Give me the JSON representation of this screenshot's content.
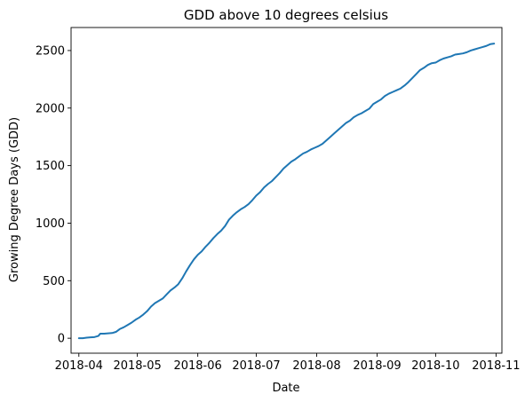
{
  "chart_data": {
    "type": "line",
    "title": "GDD above 10 degrees celsius",
    "xlabel": "Date",
    "ylabel": "Growing Degree Days (GDD)",
    "xlim": [
      "2018-03-28",
      "2018-11-04"
    ],
    "ylim": [
      -130,
      2700
    ],
    "x_ticks": [
      "2018-04",
      "2018-05",
      "2018-06",
      "2018-07",
      "2018-08",
      "2018-09",
      "2018-10",
      "2018-11"
    ],
    "y_ticks": [
      0,
      500,
      1000,
      1500,
      2000,
      2500
    ],
    "grid": false,
    "series": [
      {
        "color": "#1f77b4",
        "points": [
          [
            "2018-04-01",
            0
          ],
          [
            "2018-04-03",
            0
          ],
          [
            "2018-04-05",
            5
          ],
          [
            "2018-04-07",
            8
          ],
          [
            "2018-04-09",
            10
          ],
          [
            "2018-04-11",
            20
          ],
          [
            "2018-04-12",
            40
          ],
          [
            "2018-04-14",
            40
          ],
          [
            "2018-04-16",
            43
          ],
          [
            "2018-04-18",
            45
          ],
          [
            "2018-04-20",
            55
          ],
          [
            "2018-04-22",
            80
          ],
          [
            "2018-04-24",
            95
          ],
          [
            "2018-04-26",
            115
          ],
          [
            "2018-04-28",
            135
          ],
          [
            "2018-04-30",
            160
          ],
          [
            "2018-05-02",
            180
          ],
          [
            "2018-05-04",
            205
          ],
          [
            "2018-05-06",
            235
          ],
          [
            "2018-05-08",
            275
          ],
          [
            "2018-05-10",
            305
          ],
          [
            "2018-05-12",
            325
          ],
          [
            "2018-05-14",
            345
          ],
          [
            "2018-05-16",
            380
          ],
          [
            "2018-05-18",
            415
          ],
          [
            "2018-05-20",
            440
          ],
          [
            "2018-05-22",
            470
          ],
          [
            "2018-05-24",
            520
          ],
          [
            "2018-05-26",
            580
          ],
          [
            "2018-05-28",
            635
          ],
          [
            "2018-05-30",
            685
          ],
          [
            "2018-06-01",
            725
          ],
          [
            "2018-06-03",
            755
          ],
          [
            "2018-06-05",
            795
          ],
          [
            "2018-06-07",
            830
          ],
          [
            "2018-06-09",
            870
          ],
          [
            "2018-06-11",
            905
          ],
          [
            "2018-06-13",
            935
          ],
          [
            "2018-06-15",
            975
          ],
          [
            "2018-06-17",
            1030
          ],
          [
            "2018-06-19",
            1065
          ],
          [
            "2018-06-21",
            1095
          ],
          [
            "2018-06-23",
            1120
          ],
          [
            "2018-06-25",
            1140
          ],
          [
            "2018-06-27",
            1165
          ],
          [
            "2018-06-29",
            1200
          ],
          [
            "2018-07-01",
            1240
          ],
          [
            "2018-07-03",
            1270
          ],
          [
            "2018-07-05",
            1310
          ],
          [
            "2018-07-07",
            1340
          ],
          [
            "2018-07-09",
            1365
          ],
          [
            "2018-07-11",
            1400
          ],
          [
            "2018-07-13",
            1435
          ],
          [
            "2018-07-15",
            1475
          ],
          [
            "2018-07-17",
            1505
          ],
          [
            "2018-07-19",
            1535
          ],
          [
            "2018-07-21",
            1555
          ],
          [
            "2018-07-23",
            1580
          ],
          [
            "2018-07-25",
            1605
          ],
          [
            "2018-07-27",
            1620
          ],
          [
            "2018-07-29",
            1640
          ],
          [
            "2018-07-31",
            1655
          ],
          [
            "2018-08-02",
            1670
          ],
          [
            "2018-08-04",
            1690
          ],
          [
            "2018-08-06",
            1720
          ],
          [
            "2018-08-08",
            1750
          ],
          [
            "2018-08-10",
            1780
          ],
          [
            "2018-08-12",
            1810
          ],
          [
            "2018-08-14",
            1840
          ],
          [
            "2018-08-16",
            1870
          ],
          [
            "2018-08-18",
            1890
          ],
          [
            "2018-08-20",
            1920
          ],
          [
            "2018-08-22",
            1940
          ],
          [
            "2018-08-24",
            1955
          ],
          [
            "2018-08-26",
            1975
          ],
          [
            "2018-08-28",
            1995
          ],
          [
            "2018-08-30",
            2035
          ],
          [
            "2018-09-01",
            2055
          ],
          [
            "2018-09-03",
            2075
          ],
          [
            "2018-09-05",
            2105
          ],
          [
            "2018-09-07",
            2125
          ],
          [
            "2018-09-09",
            2140
          ],
          [
            "2018-09-11",
            2155
          ],
          [
            "2018-09-13",
            2170
          ],
          [
            "2018-09-15",
            2195
          ],
          [
            "2018-09-17",
            2225
          ],
          [
            "2018-09-19",
            2260
          ],
          [
            "2018-09-21",
            2295
          ],
          [
            "2018-09-23",
            2330
          ],
          [
            "2018-09-25",
            2350
          ],
          [
            "2018-09-27",
            2375
          ],
          [
            "2018-09-29",
            2390
          ],
          [
            "2018-10-01",
            2395
          ],
          [
            "2018-10-03",
            2415
          ],
          [
            "2018-10-05",
            2430
          ],
          [
            "2018-10-07",
            2440
          ],
          [
            "2018-10-09",
            2450
          ],
          [
            "2018-10-11",
            2465
          ],
          [
            "2018-10-13",
            2470
          ],
          [
            "2018-10-15",
            2475
          ],
          [
            "2018-10-17",
            2485
          ],
          [
            "2018-10-19",
            2500
          ],
          [
            "2018-10-21",
            2510
          ],
          [
            "2018-10-23",
            2520
          ],
          [
            "2018-10-25",
            2530
          ],
          [
            "2018-10-27",
            2540
          ],
          [
            "2018-10-29",
            2555
          ],
          [
            "2018-10-31",
            2560
          ]
        ]
      }
    ]
  }
}
